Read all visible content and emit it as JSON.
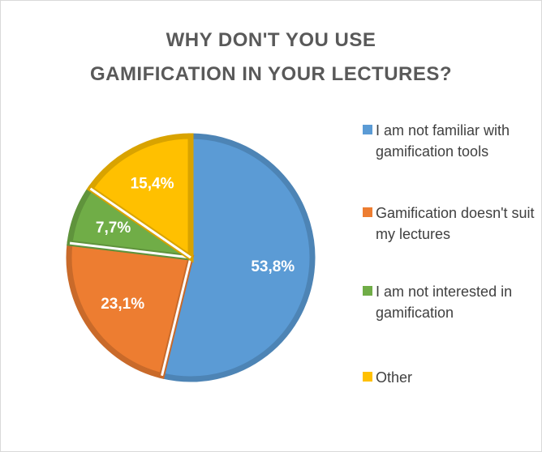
{
  "chart_data": {
    "type": "pie",
    "title": [
      "WHY DON'T YOU USE",
      "GAMIFICATION IN YOUR LECTURES?"
    ],
    "categories": [
      "I am not familiar with gamification tools",
      "Gamification doesn't suit my lectures",
      "I am not interested in gamification",
      "Other"
    ],
    "values": [
      53.8,
      23.1,
      7.7,
      15.4
    ],
    "value_labels": [
      "53,8%",
      "23,1%",
      "7,7%",
      "15,4%"
    ],
    "colors": [
      "#5b9bd5",
      "#ed7d31",
      "#70ad47",
      "#ffc000"
    ],
    "legend": "right"
  }
}
